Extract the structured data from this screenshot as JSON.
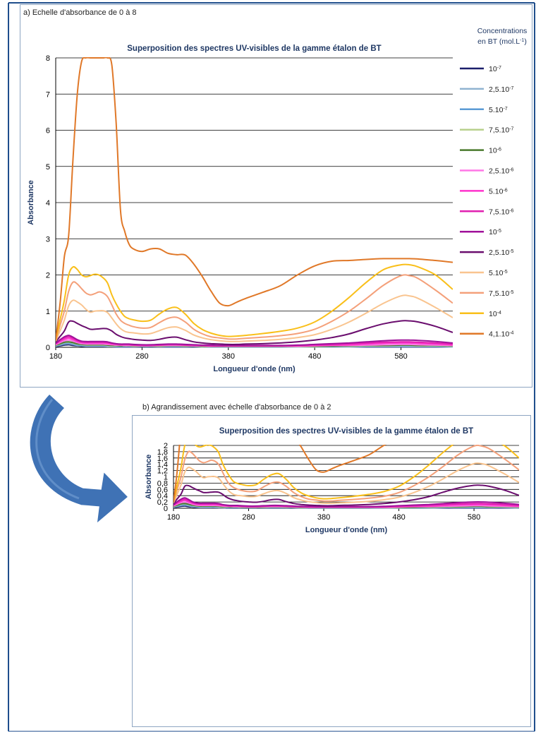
{
  "panels": {
    "a_caption": "a) Echelle d'absorbance de 0 à 8",
    "b_caption": "b) Agrandissement avec échelle d'absorbance de 0 à 2"
  },
  "legend": {
    "title_line1": "Concentrations",
    "title_line2_prefix": "en BT (mol.L",
    "title_line2_sup": "-1",
    "title_line2_suffix": ")"
  },
  "colors": {
    "frame": "#1f4e8c",
    "arrow": "#3f72b5",
    "panel_border": "#8ea6c2"
  },
  "chart_data": [
    {
      "type": "line",
      "title": "Superposition des spectres UV-visibles de la gamme étalon de BT",
      "xlabel": "Longueur d'onde (nm)",
      "ylabel": "Absorbance",
      "xlim": [
        180,
        640
      ],
      "ylim": [
        0,
        8
      ],
      "xticks": [
        "180",
        "280",
        "380",
        "480",
        "580"
      ],
      "yticks": [
        "0",
        "1",
        "2",
        "3",
        "4",
        "5",
        "6",
        "7",
        "8"
      ],
      "grid": true,
      "legend_position": "right"
    },
    {
      "type": "line",
      "title": "Superposition des spectres UV-visibles de la gamme étalon de BT",
      "xlabel": "Longueur d'onde (nm)",
      "ylabel": "Absorbance",
      "xlim": [
        180,
        640
      ],
      "ylim": [
        0,
        2
      ],
      "xticks": [
        "180",
        "280",
        "380",
        "480",
        "580"
      ],
      "yticks": [
        "0",
        "0,2",
        "0,4",
        "0,6",
        "0,8",
        "1",
        "1,2",
        "1,4",
        "1,6",
        "1,8",
        "2"
      ],
      "grid": true
    }
  ],
  "series_shared": {
    "x": [
      180,
      185,
      190,
      195,
      200,
      205,
      210,
      215,
      220,
      225,
      230,
      235,
      240,
      245,
      250,
      255,
      260,
      265,
      270,
      280,
      290,
      300,
      310,
      320,
      330,
      340,
      350,
      360,
      370,
      380,
      390,
      400,
      420,
      440,
      460,
      480,
      500,
      520,
      540,
      560,
      580,
      590,
      600,
      620,
      640
    ],
    "series": [
      {
        "base": "10",
        "exp": "-7",
        "color": "#1b1f6b",
        "values": [
          0.02,
          0.04,
          0.06,
          0.07,
          0.05,
          0.04,
          0.03,
          0.02,
          0.02,
          0.02,
          0.02,
          0.02,
          0.02,
          0.02,
          0.01,
          0.01,
          0.01,
          0.01,
          0.01,
          0.01,
          0.01,
          0.01,
          0.01,
          0.01,
          0.01,
          0.01,
          0.01,
          0.01,
          0.01,
          0.01,
          0.01,
          0.01,
          0.01,
          0.01,
          0.01,
          0.01,
          0.01,
          0.01,
          0.01,
          0.01,
          0.01,
          0.01,
          0.01,
          0.01,
          0.01
        ]
      },
      {
        "base": "2,5.10",
        "exp": "-7",
        "color": "#8fb3d0",
        "values": [
          0.03,
          0.06,
          0.09,
          0.1,
          0.08,
          0.05,
          0.04,
          0.03,
          0.03,
          0.03,
          0.03,
          0.03,
          0.02,
          0.02,
          0.02,
          0.02,
          0.02,
          0.02,
          0.02,
          0.02,
          0.02,
          0.02,
          0.02,
          0.02,
          0.02,
          0.02,
          0.01,
          0.01,
          0.01,
          0.01,
          0.01,
          0.01,
          0.01,
          0.01,
          0.01,
          0.01,
          0.01,
          0.01,
          0.02,
          0.02,
          0.02,
          0.02,
          0.02,
          0.02,
          0.01
        ]
      },
      {
        "base": "5.10",
        "exp": "-7",
        "color": "#5b9bd5",
        "values": [
          0.04,
          0.07,
          0.11,
          0.12,
          0.1,
          0.07,
          0.05,
          0.05,
          0.05,
          0.05,
          0.05,
          0.05,
          0.04,
          0.04,
          0.03,
          0.03,
          0.03,
          0.03,
          0.03,
          0.02,
          0.02,
          0.03,
          0.03,
          0.03,
          0.02,
          0.02,
          0.02,
          0.01,
          0.01,
          0.01,
          0.01,
          0.01,
          0.01,
          0.01,
          0.02,
          0.02,
          0.02,
          0.02,
          0.03,
          0.03,
          0.03,
          0.03,
          0.03,
          0.03,
          0.02
        ]
      },
      {
        "base": "7,5.10",
        "exp": "-7",
        "color": "#b8d08d",
        "values": [
          0.05,
          0.09,
          0.13,
          0.14,
          0.12,
          0.09,
          0.07,
          0.06,
          0.06,
          0.06,
          0.06,
          0.06,
          0.05,
          0.04,
          0.04,
          0.04,
          0.04,
          0.04,
          0.03,
          0.03,
          0.03,
          0.03,
          0.04,
          0.04,
          0.03,
          0.03,
          0.02,
          0.02,
          0.02,
          0.02,
          0.02,
          0.02,
          0.02,
          0.02,
          0.02,
          0.02,
          0.03,
          0.03,
          0.04,
          0.04,
          0.05,
          0.05,
          0.04,
          0.04,
          0.03
        ]
      },
      {
        "base": "10",
        "exp": "-6",
        "color": "#4a7a2c",
        "values": [
          0.06,
          0.1,
          0.14,
          0.15,
          0.13,
          0.1,
          0.08,
          0.07,
          0.07,
          0.07,
          0.07,
          0.07,
          0.06,
          0.05,
          0.05,
          0.04,
          0.04,
          0.04,
          0.04,
          0.03,
          0.03,
          0.04,
          0.04,
          0.04,
          0.04,
          0.03,
          0.03,
          0.02,
          0.02,
          0.02,
          0.02,
          0.02,
          0.02,
          0.02,
          0.03,
          0.03,
          0.03,
          0.04,
          0.05,
          0.05,
          0.06,
          0.06,
          0.05,
          0.05,
          0.04
        ]
      },
      {
        "base": "2,5.10",
        "exp": "-6",
        "color": "#ff77e6",
        "values": [
          0.07,
          0.13,
          0.18,
          0.2,
          0.17,
          0.13,
          0.1,
          0.09,
          0.09,
          0.09,
          0.09,
          0.09,
          0.08,
          0.07,
          0.06,
          0.06,
          0.05,
          0.05,
          0.05,
          0.04,
          0.04,
          0.05,
          0.05,
          0.05,
          0.05,
          0.04,
          0.04,
          0.03,
          0.03,
          0.03,
          0.03,
          0.03,
          0.03,
          0.03,
          0.03,
          0.04,
          0.05,
          0.05,
          0.06,
          0.07,
          0.08,
          0.08,
          0.07,
          0.06,
          0.05
        ]
      },
      {
        "base": "5.10",
        "exp": "-6",
        "color": "#ff33cc",
        "values": [
          0.09,
          0.16,
          0.22,
          0.25,
          0.21,
          0.16,
          0.13,
          0.12,
          0.12,
          0.12,
          0.12,
          0.12,
          0.11,
          0.09,
          0.08,
          0.07,
          0.07,
          0.07,
          0.06,
          0.05,
          0.05,
          0.06,
          0.07,
          0.07,
          0.06,
          0.05,
          0.05,
          0.04,
          0.04,
          0.04,
          0.04,
          0.04,
          0.04,
          0.04,
          0.04,
          0.05,
          0.06,
          0.07,
          0.09,
          0.11,
          0.12,
          0.12,
          0.11,
          0.09,
          0.07
        ]
      },
      {
        "base": "7,5.10",
        "exp": "-6",
        "color": "#e020b0",
        "values": [
          0.1,
          0.19,
          0.26,
          0.29,
          0.25,
          0.19,
          0.15,
          0.14,
          0.14,
          0.14,
          0.14,
          0.14,
          0.13,
          0.11,
          0.09,
          0.08,
          0.08,
          0.08,
          0.07,
          0.06,
          0.06,
          0.07,
          0.08,
          0.08,
          0.07,
          0.06,
          0.05,
          0.05,
          0.05,
          0.05,
          0.05,
          0.05,
          0.05,
          0.05,
          0.05,
          0.07,
          0.08,
          0.1,
          0.12,
          0.14,
          0.15,
          0.15,
          0.14,
          0.12,
          0.09
        ]
      },
      {
        "base": "10",
        "exp": "-5",
        "color": "#a0129a",
        "values": [
          0.11,
          0.21,
          0.29,
          0.33,
          0.28,
          0.21,
          0.17,
          0.16,
          0.16,
          0.16,
          0.16,
          0.16,
          0.15,
          0.12,
          0.1,
          0.09,
          0.09,
          0.09,
          0.08,
          0.07,
          0.07,
          0.08,
          0.09,
          0.09,
          0.08,
          0.07,
          0.06,
          0.06,
          0.05,
          0.05,
          0.05,
          0.05,
          0.05,
          0.05,
          0.06,
          0.08,
          0.1,
          0.12,
          0.15,
          0.18,
          0.2,
          0.2,
          0.19,
          0.16,
          0.12
        ]
      },
      {
        "base": "2,5.10",
        "exp": "-5",
        "color": "#6a0d6e",
        "values": [
          0.15,
          0.3,
          0.45,
          0.7,
          0.72,
          0.66,
          0.6,
          0.55,
          0.5,
          0.5,
          0.51,
          0.52,
          0.51,
          0.45,
          0.36,
          0.3,
          0.26,
          0.24,
          0.22,
          0.2,
          0.19,
          0.22,
          0.27,
          0.28,
          0.21,
          0.15,
          0.12,
          0.1,
          0.09,
          0.08,
          0.08,
          0.09,
          0.1,
          0.12,
          0.15,
          0.2,
          0.27,
          0.37,
          0.52,
          0.65,
          0.73,
          0.73,
          0.7,
          0.58,
          0.41
        ]
      },
      {
        "base": "5.10",
        "exp": "-5",
        "color": "#f9c48f",
        "values": [
          0.17,
          0.45,
          0.75,
          1.15,
          1.3,
          1.25,
          1.17,
          1.05,
          0.97,
          1.0,
          1.01,
          1.01,
          0.96,
          0.81,
          0.65,
          0.52,
          0.44,
          0.41,
          0.4,
          0.37,
          0.38,
          0.46,
          0.54,
          0.56,
          0.47,
          0.34,
          0.26,
          0.21,
          0.18,
          0.16,
          0.16,
          0.17,
          0.19,
          0.22,
          0.27,
          0.35,
          0.5,
          0.7,
          0.95,
          1.22,
          1.42,
          1.42,
          1.35,
          1.1,
          0.82
        ]
      },
      {
        "base": "7,5.10",
        "exp": "-5",
        "color": "#f4a07a",
        "values": [
          0.18,
          0.6,
          1.0,
          1.55,
          1.8,
          1.75,
          1.62,
          1.5,
          1.45,
          1.48,
          1.53,
          1.5,
          1.4,
          1.17,
          0.92,
          0.75,
          0.66,
          0.61,
          0.57,
          0.53,
          0.55,
          0.68,
          0.8,
          0.83,
          0.7,
          0.5,
          0.37,
          0.29,
          0.26,
          0.23,
          0.23,
          0.25,
          0.28,
          0.32,
          0.38,
          0.5,
          0.72,
          1.0,
          1.35,
          1.72,
          1.98,
          1.98,
          1.9,
          1.58,
          1.22
        ]
      },
      {
        "base": "10",
        "exp": "-4",
        "color": "#f9bf1a",
        "values": [
          0.19,
          0.75,
          1.3,
          2.0,
          2.22,
          2.15,
          2.0,
          1.95,
          1.98,
          2.02,
          2.0,
          1.92,
          1.78,
          1.45,
          1.2,
          1.0,
          0.85,
          0.79,
          0.76,
          0.72,
          0.75,
          0.92,
          1.06,
          1.1,
          0.92,
          0.66,
          0.49,
          0.39,
          0.33,
          0.3,
          0.31,
          0.33,
          0.38,
          0.44,
          0.53,
          0.7,
          1.0,
          1.38,
          1.8,
          2.15,
          2.28,
          2.28,
          2.22,
          2.0,
          1.6
        ]
      },
      {
        "base": "4,1.10",
        "exp": "-4",
        "color": "#e07828",
        "values": [
          0.2,
          1.2,
          2.5,
          3.1,
          5.2,
          7.0,
          7.9,
          8.0,
          8.0,
          8.0,
          8.0,
          8.0,
          8.0,
          7.8,
          6.2,
          3.8,
          3.2,
          2.85,
          2.72,
          2.65,
          2.72,
          2.72,
          2.6,
          2.56,
          2.55,
          2.3,
          1.95,
          1.55,
          1.22,
          1.15,
          1.25,
          1.35,
          1.52,
          1.7,
          2.0,
          2.25,
          2.38,
          2.4,
          2.43,
          2.45,
          2.45,
          2.45,
          2.44,
          2.4,
          2.35
        ]
      }
    ]
  }
}
